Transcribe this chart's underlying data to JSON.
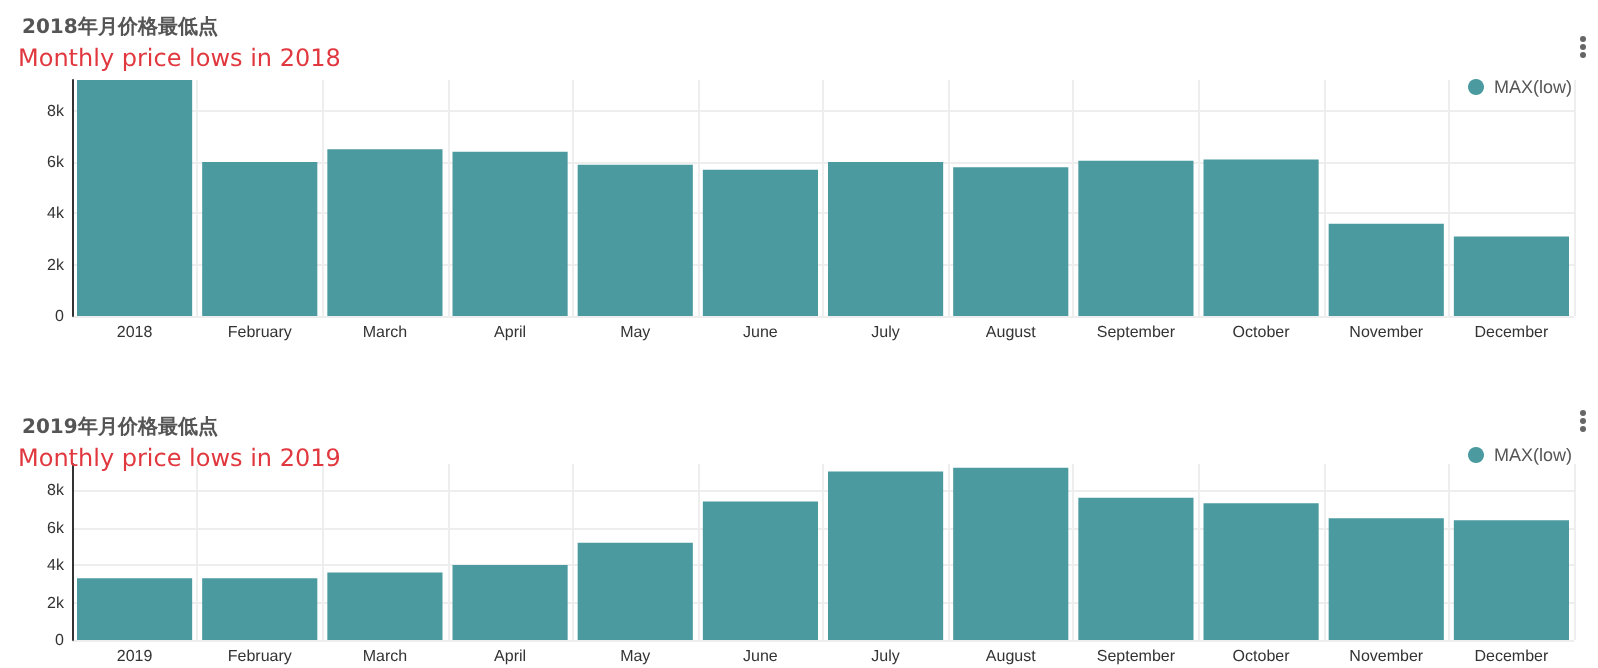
{
  "chart_data": [
    {
      "type": "bar",
      "title": "2018年月价格最低点",
      "subtitle": "Monthly price lows in 2018",
      "categories": [
        "2018",
        "February",
        "March",
        "April",
        "May",
        "June",
        "July",
        "August",
        "September",
        "October",
        "November",
        "December"
      ],
      "series": [
        {
          "name": "MAX(low)",
          "color": "#4a9aa0",
          "values": [
            9200,
            6000,
            6500,
            6400,
            5900,
            5700,
            6000,
            5800,
            6050,
            6100,
            3600,
            3100
          ]
        }
      ],
      "ylim": [
        0,
        9200
      ],
      "yticks": [
        0,
        {
          "value": 2000,
          "label": "2k"
        },
        {
          "value": 4000,
          "label": "4k"
        },
        {
          "value": 6000,
          "label": "6k"
        },
        {
          "value": 8000,
          "label": "8k"
        }
      ],
      "grid": true,
      "legend": "top right"
    },
    {
      "type": "bar",
      "title": "2019年月价格最低点",
      "subtitle": "Monthly price lows in 2019",
      "categories": [
        "2019",
        "February",
        "March",
        "April",
        "May",
        "June",
        "July",
        "August",
        "September",
        "October",
        "November",
        "December"
      ],
      "series": [
        {
          "name": "MAX(low)",
          "color": "#4a9aa0",
          "values": [
            3300,
            3300,
            3600,
            4000,
            5200,
            7400,
            9000,
            9200,
            7600,
            7300,
            6500,
            6400
          ]
        }
      ],
      "ylim": [
        0,
        9400
      ],
      "yticks": [
        0,
        {
          "value": 2000,
          "label": "2k"
        },
        {
          "value": 4000,
          "label": "4k"
        },
        {
          "value": 6000,
          "label": "6k"
        },
        {
          "value": 8000,
          "label": "8k"
        }
      ],
      "grid": true,
      "legend": "top right"
    }
  ]
}
